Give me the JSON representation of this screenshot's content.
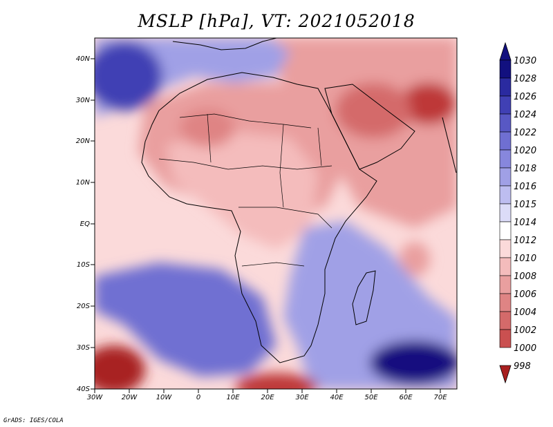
{
  "title": "MSLP [hPa], VT: 2021052018",
  "credit": "GrADS: IGES/COLA",
  "x_ticks": [
    "30W",
    "20W",
    "10W",
    "0",
    "10E",
    "20E",
    "30E",
    "40E",
    "50E",
    "60E",
    "70E"
  ],
  "y_ticks": [
    "40N",
    "30N",
    "20N",
    "10N",
    "EQ",
    "10S",
    "20S",
    "30S",
    "40S"
  ],
  "colorbar": {
    "labels": [
      "1030",
      "1028",
      "1026",
      "1024",
      "1022",
      "1020",
      "1018",
      "1016",
      "1015",
      "1014",
      "1012",
      "1010",
      "1008",
      "1006",
      "1004",
      "1002",
      "1000",
      "998"
    ],
    "colors": [
      "#12107f",
      "#2a2aa0",
      "#4040b4",
      "#5858c4",
      "#6f6fd2",
      "#8787dd",
      "#a0a0e6",
      "#bdbdf0",
      "#dcdcf8",
      "#ffffff",
      "#fbdada",
      "#f4bcbc",
      "#e99f9f",
      "#df8484",
      "#d46a6a",
      "#ca5050",
      "#be3838",
      "#a82020"
    ]
  },
  "field_colors": {
    "lowest": "#a82020",
    "deep_red": "#be3838",
    "red": "#d46a6a",
    "mid_red": "#df8484",
    "light_red": "#e99f9f",
    "pale_red": "#f4bcbc",
    "pink": "#fbdada",
    "neutral": "#ffffff",
    "pale_blue": "#dcdcf8",
    "light_blue": "#a0a0e6",
    "blue": "#6f6fd2",
    "deep_blue": "#4040b4",
    "darkest": "#12107f"
  }
}
